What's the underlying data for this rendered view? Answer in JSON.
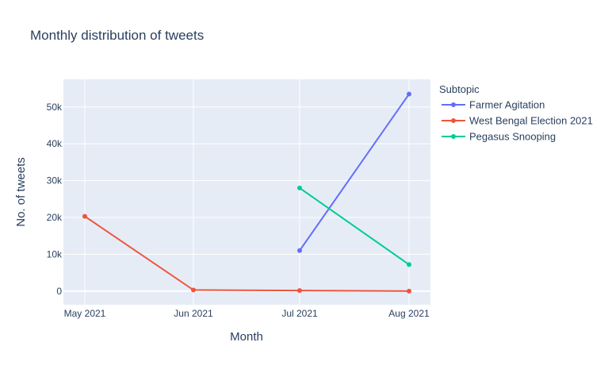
{
  "chart_data": {
    "type": "line",
    "title": "Monthly distribution of tweets",
    "xlabel": "Month",
    "ylabel": "No. of tweets",
    "categories": [
      "May 2021",
      "Jun 2021",
      "Jul 2021",
      "Aug 2021"
    ],
    "yticks": [
      {
        "value": 0,
        "label": "0"
      },
      {
        "value": 10000,
        "label": "10k"
      },
      {
        "value": 20000,
        "label": "20k"
      },
      {
        "value": 30000,
        "label": "30k"
      },
      {
        "value": 40000,
        "label": "40k"
      },
      {
        "value": 50000,
        "label": "50k"
      }
    ],
    "ylim": [
      -3700,
      57500
    ],
    "grid": true,
    "legend": {
      "title": "Subtopic",
      "placement": "right"
    },
    "series": [
      {
        "name": "Farmer Agitation",
        "color": "#636efa",
        "points": [
          {
            "x": "Jul 2021",
            "y": 11000
          },
          {
            "x": "Aug 2021",
            "y": 53500
          }
        ]
      },
      {
        "name": "West Bengal Election 2021",
        "color": "#ef553b",
        "points": [
          {
            "x": "May 2021",
            "y": 20300
          },
          {
            "x": "Jun 2021",
            "y": 300
          },
          {
            "x": "Jul 2021",
            "y": 150
          },
          {
            "x": "Aug 2021",
            "y": 0
          }
        ]
      },
      {
        "name": "Pegasus Snooping",
        "color": "#00cc96",
        "points": [
          {
            "x": "Jul 2021",
            "y": 28000
          },
          {
            "x": "Aug 2021",
            "y": 7200
          }
        ]
      }
    ]
  }
}
